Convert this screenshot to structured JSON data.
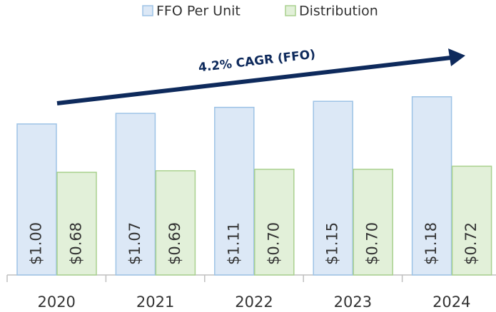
{
  "chart_data": {
    "type": "bar",
    "annotation": "4.2% CAGR (FFO)",
    "categories": [
      "2020",
      "2021",
      "2022",
      "2023",
      "2024"
    ],
    "series": [
      {
        "name": "FFO Per Unit",
        "color": "#dce8f6",
        "edge_color": "#9dc3e6",
        "values": [
          1.0,
          1.07,
          1.11,
          1.15,
          1.18
        ],
        "value_labels": [
          "$1.00",
          "$1.07",
          "$1.11",
          "$1.15",
          "$1.18"
        ]
      },
      {
        "name": "Distribution",
        "color": "#e2f0d9",
        "edge_color": "#a9d18e",
        "values": [
          0.68,
          0.69,
          0.7,
          0.7,
          0.72
        ],
        "value_labels": [
          "$0.68",
          "$0.69",
          "$0.70",
          "$0.70",
          "$0.72"
        ]
      }
    ]
  }
}
